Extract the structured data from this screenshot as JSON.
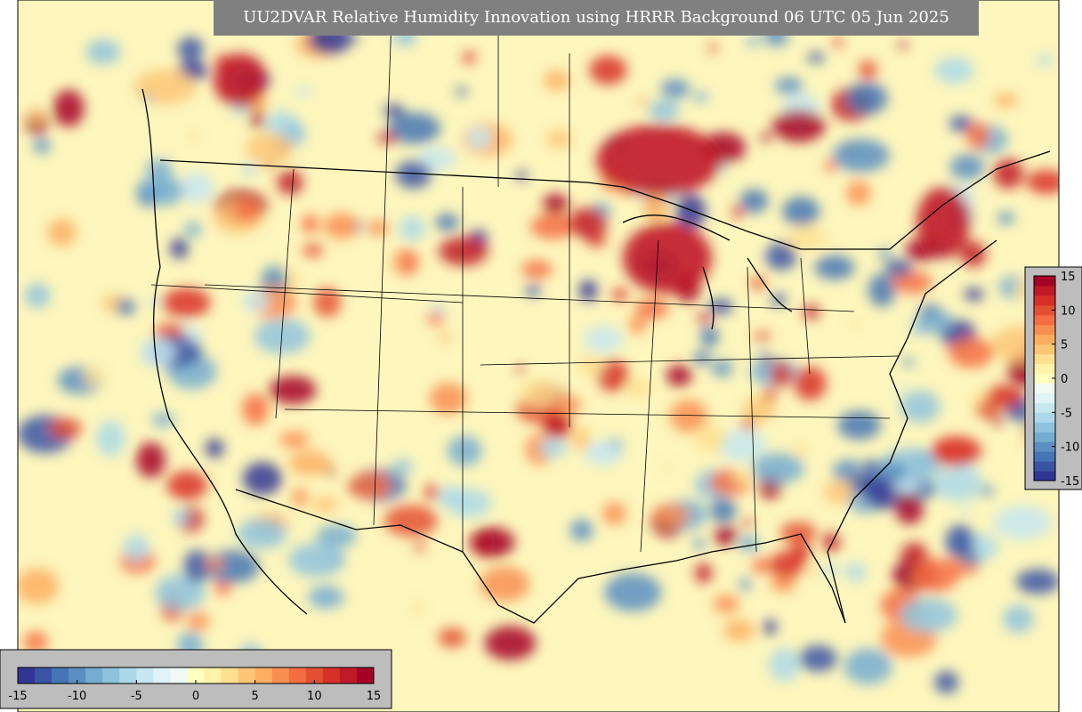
{
  "title": "UU2DVAR Relative Humidity Innovation using HRRR Background 06 UTC 05 Jun 2025",
  "colorbar_right": {
    "orientation": "vertical",
    "lim": [
      -15,
      15
    ],
    "ticks": [
      -15,
      -10,
      -5,
      0,
      5,
      10,
      15
    ]
  },
  "colorbar_bottom": {
    "orientation": "horizontal",
    "lim": [
      -15,
      15
    ],
    "ticks": [
      -15,
      -10,
      -5,
      0,
      5,
      10,
      15
    ]
  },
  "colors": [
    "#313695",
    "#3a54a4",
    "#4575b4",
    "#5b8fc2",
    "#74add1",
    "#8fc3dd",
    "#abd9e9",
    "#c6e6f0",
    "#e0f3f8",
    "#f0f9f4",
    "#ffffbf",
    "#fff2aa",
    "#fee090",
    "#fdc576",
    "#fdae61",
    "#f98e52",
    "#f46d43",
    "#e34f33",
    "#d73027",
    "#c01a27",
    "#a50026"
  ]
}
